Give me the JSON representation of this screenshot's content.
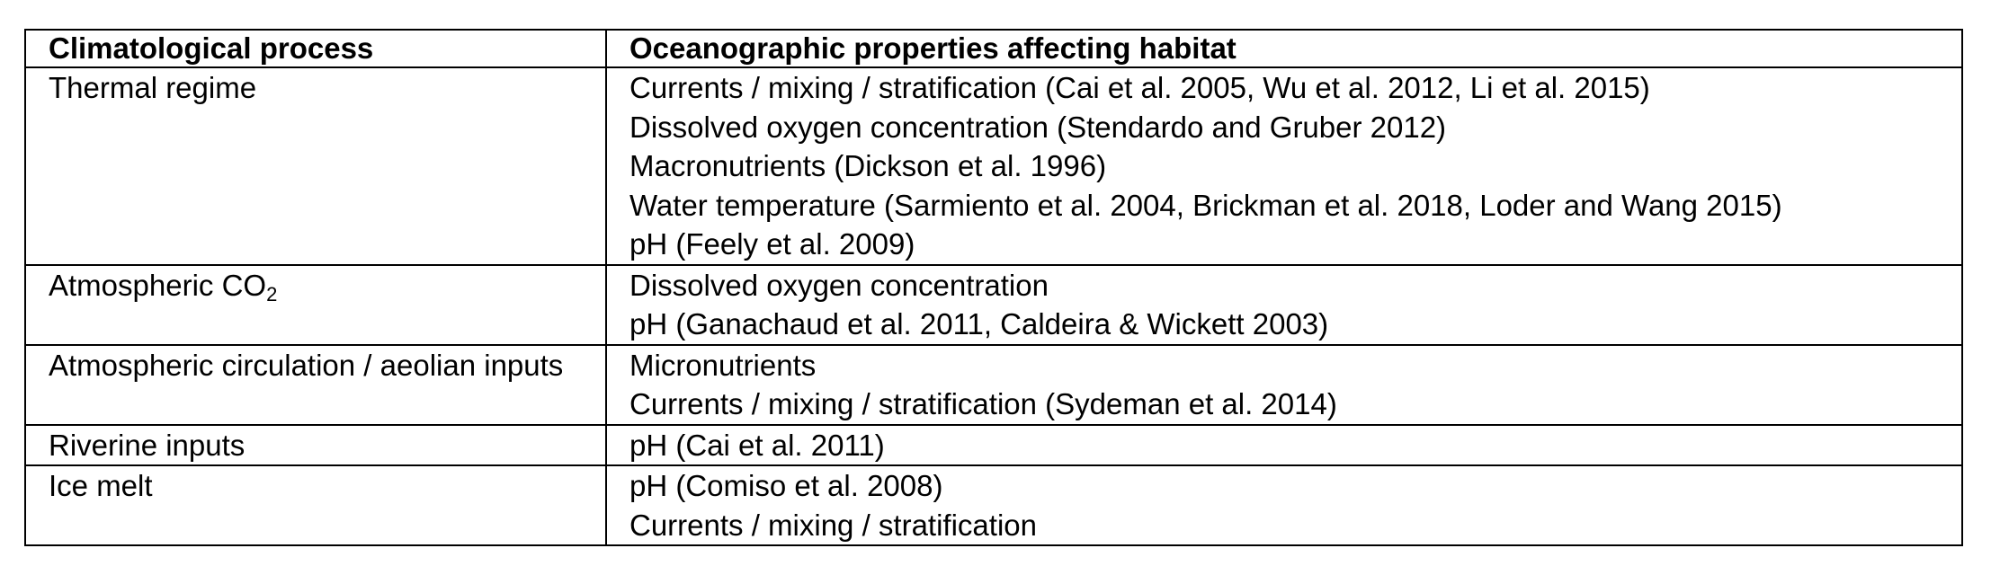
{
  "table": {
    "headers": {
      "process": "Climatological process",
      "properties": "Oceanographic properties affecting habitat"
    },
    "rows": [
      {
        "process": "Thermal regime",
        "properties": [
          "Currents / mixing / stratification (Cai et al. 2005, Wu et al. 2012, Li et al. 2015)",
          "Dissolved oxygen concentration (Stendardo and Gruber 2012)",
          "Macronutrients (Dickson et al. 1996)",
          "Water temperature (Sarmiento et al. 2004, Brickman et al. 2018, Loder and Wang 2015)",
          "pH (Feely et al. 2009)"
        ]
      },
      {
        "process": "Atmospheric CO",
        "process_subscript": "2",
        "properties": [
          "Dissolved oxygen concentration",
          "pH (Ganachaud et al. 2011, Caldeira & Wickett 2003)"
        ]
      },
      {
        "process": "Atmospheric circulation / aeolian inputs",
        "properties": [
          "Micronutrients",
          "Currents / mixing / stratification (Sydeman et al. 2014)"
        ]
      },
      {
        "process": "Riverine inputs",
        "properties": [
          "pH (Cai et al. 2011)"
        ]
      },
      {
        "process": "Ice melt",
        "properties": [
          "pH (Comiso et al. 2008)",
          "Currents / mixing / stratification"
        ]
      }
    ]
  }
}
